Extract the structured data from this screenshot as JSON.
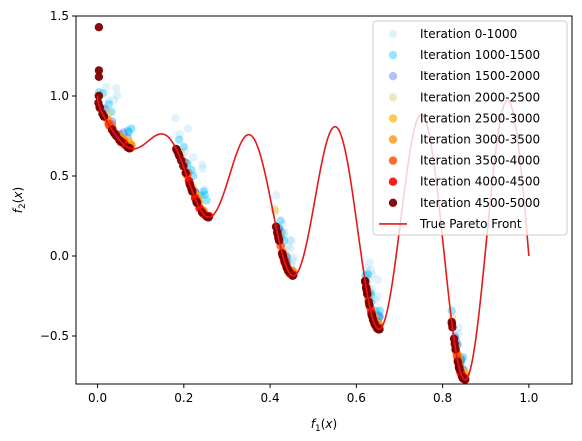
{
  "chart_data": {
    "type": "scatter",
    "title": "",
    "xlabel": "f_1(x)",
    "ylabel": "f_2(x)",
    "xlim": [
      -0.05,
      1.1
    ],
    "ylim": [
      -0.8,
      1.5
    ],
    "xticks": [
      0.0,
      0.2,
      0.4,
      0.6,
      0.8,
      1.0
    ],
    "xtick_labels": [
      "0.0",
      "0.2",
      "0.4",
      "0.6",
      "0.8",
      "1.0"
    ],
    "yticks": [
      -0.5,
      0.0,
      0.5,
      1.0,
      1.5
    ],
    "ytick_labels": [
      "−0.5",
      "0.0",
      "0.5",
      "1.0",
      "1.5"
    ],
    "grid": false,
    "legend_position": "top-right",
    "front_segments": [
      [
        0.0,
        0.08
      ],
      [
        0.18,
        0.26
      ],
      [
        0.41,
        0.455
      ],
      [
        0.62,
        0.655
      ],
      [
        0.82,
        0.855
      ]
    ],
    "series": [
      {
        "name": "Iteration 0-1000",
        "color": "#87ceeb",
        "alpha": 0.25
      },
      {
        "name": "Iteration 1000-1500",
        "color": "#00bfff",
        "alpha": 0.4
      },
      {
        "name": "Iteration 1500-2000",
        "color": "#4169e1",
        "alpha": 0.4
      },
      {
        "name": "Iteration 2000-2500",
        "color": "#d6c25a",
        "alpha": 0.4
      },
      {
        "name": "Iteration 2500-3000",
        "color": "#ffb300",
        "alpha": 0.7
      },
      {
        "name": "Iteration 3000-3500",
        "color": "#ff8c00",
        "alpha": 0.75
      },
      {
        "name": "Iteration 3500-4000",
        "color": "#ff4500",
        "alpha": 0.8
      },
      {
        "name": "Iteration 4000-4500",
        "color": "#ff0000",
        "alpha": 0.9
      },
      {
        "name": "Iteration 4500-5000",
        "color": "#800000",
        "alpha": 0.95
      }
    ],
    "line_series": {
      "name": "True Pareto Front",
      "color": "#e31a1c"
    }
  }
}
